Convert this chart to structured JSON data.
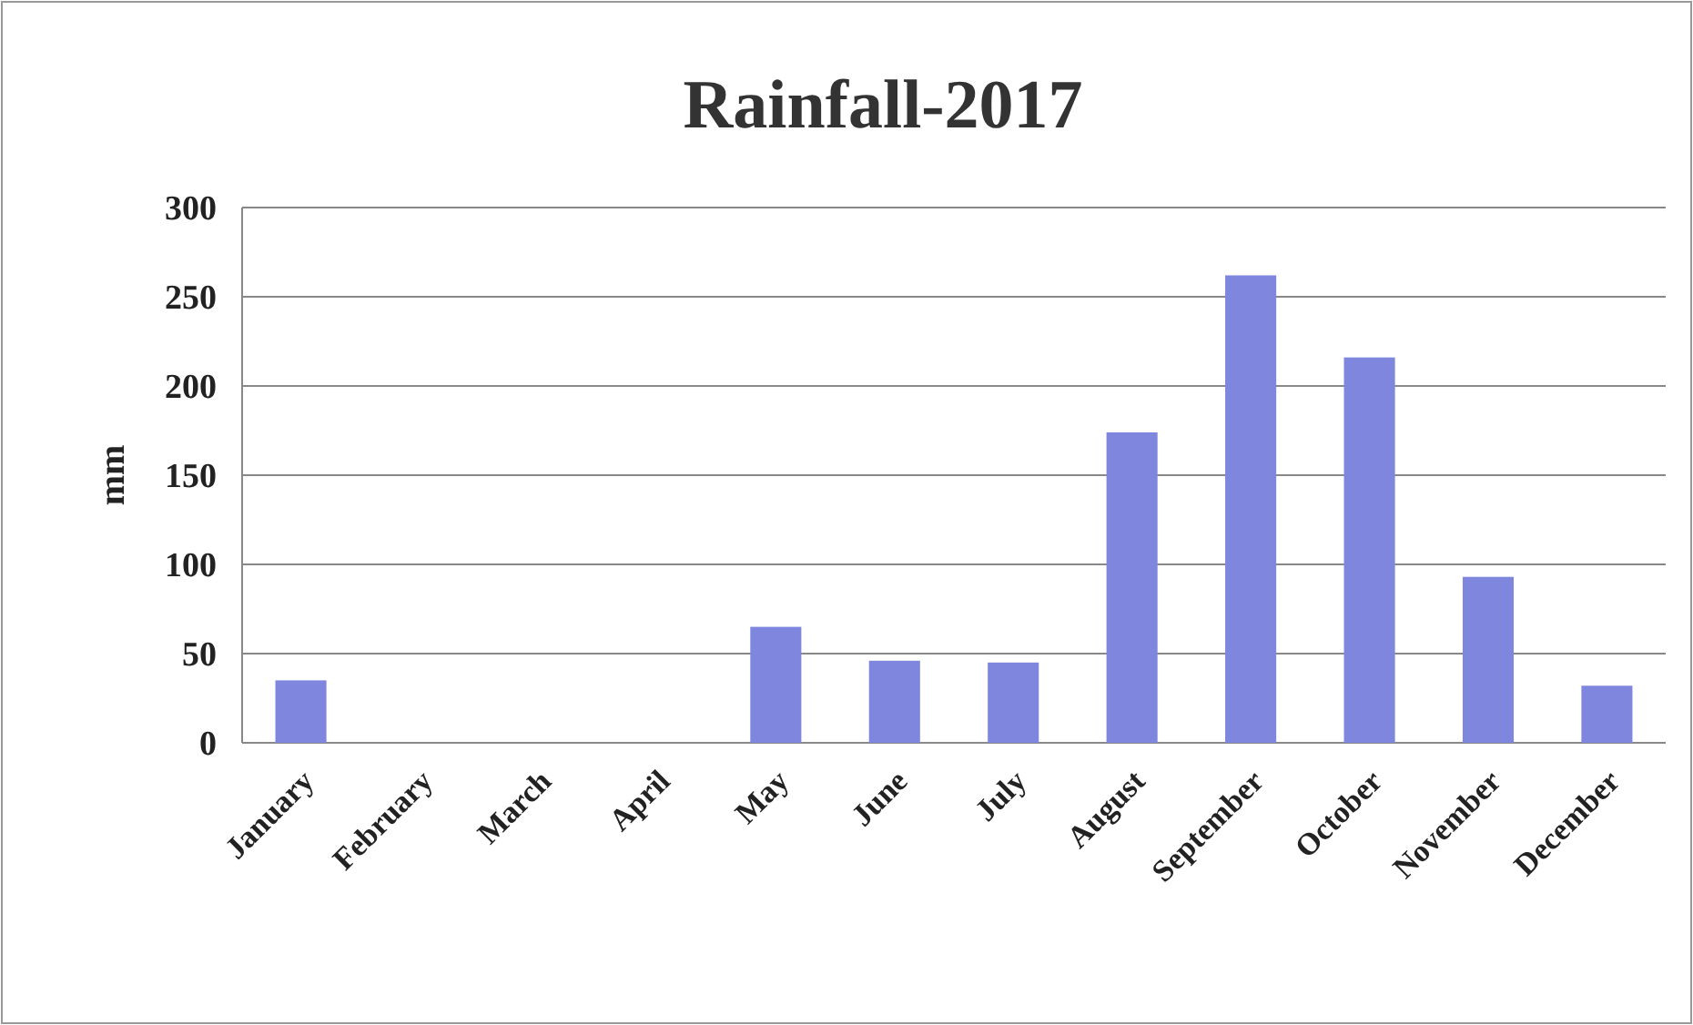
{
  "chart_data": {
    "type": "bar",
    "title": "Rainfall-2017",
    "ylabel": "mm",
    "categories": [
      "January",
      "February",
      "March",
      "April",
      "May",
      "June",
      "July",
      "August",
      "September",
      "October",
      "November",
      "December"
    ],
    "values": [
      35,
      0,
      0,
      0,
      65,
      46,
      45,
      174,
      262,
      216,
      93,
      32
    ],
    "color": "#7f86de",
    "ylim": [
      0,
      300
    ],
    "yticks": [
      0,
      50,
      100,
      150,
      200,
      250,
      300
    ],
    "grid": "y"
  }
}
